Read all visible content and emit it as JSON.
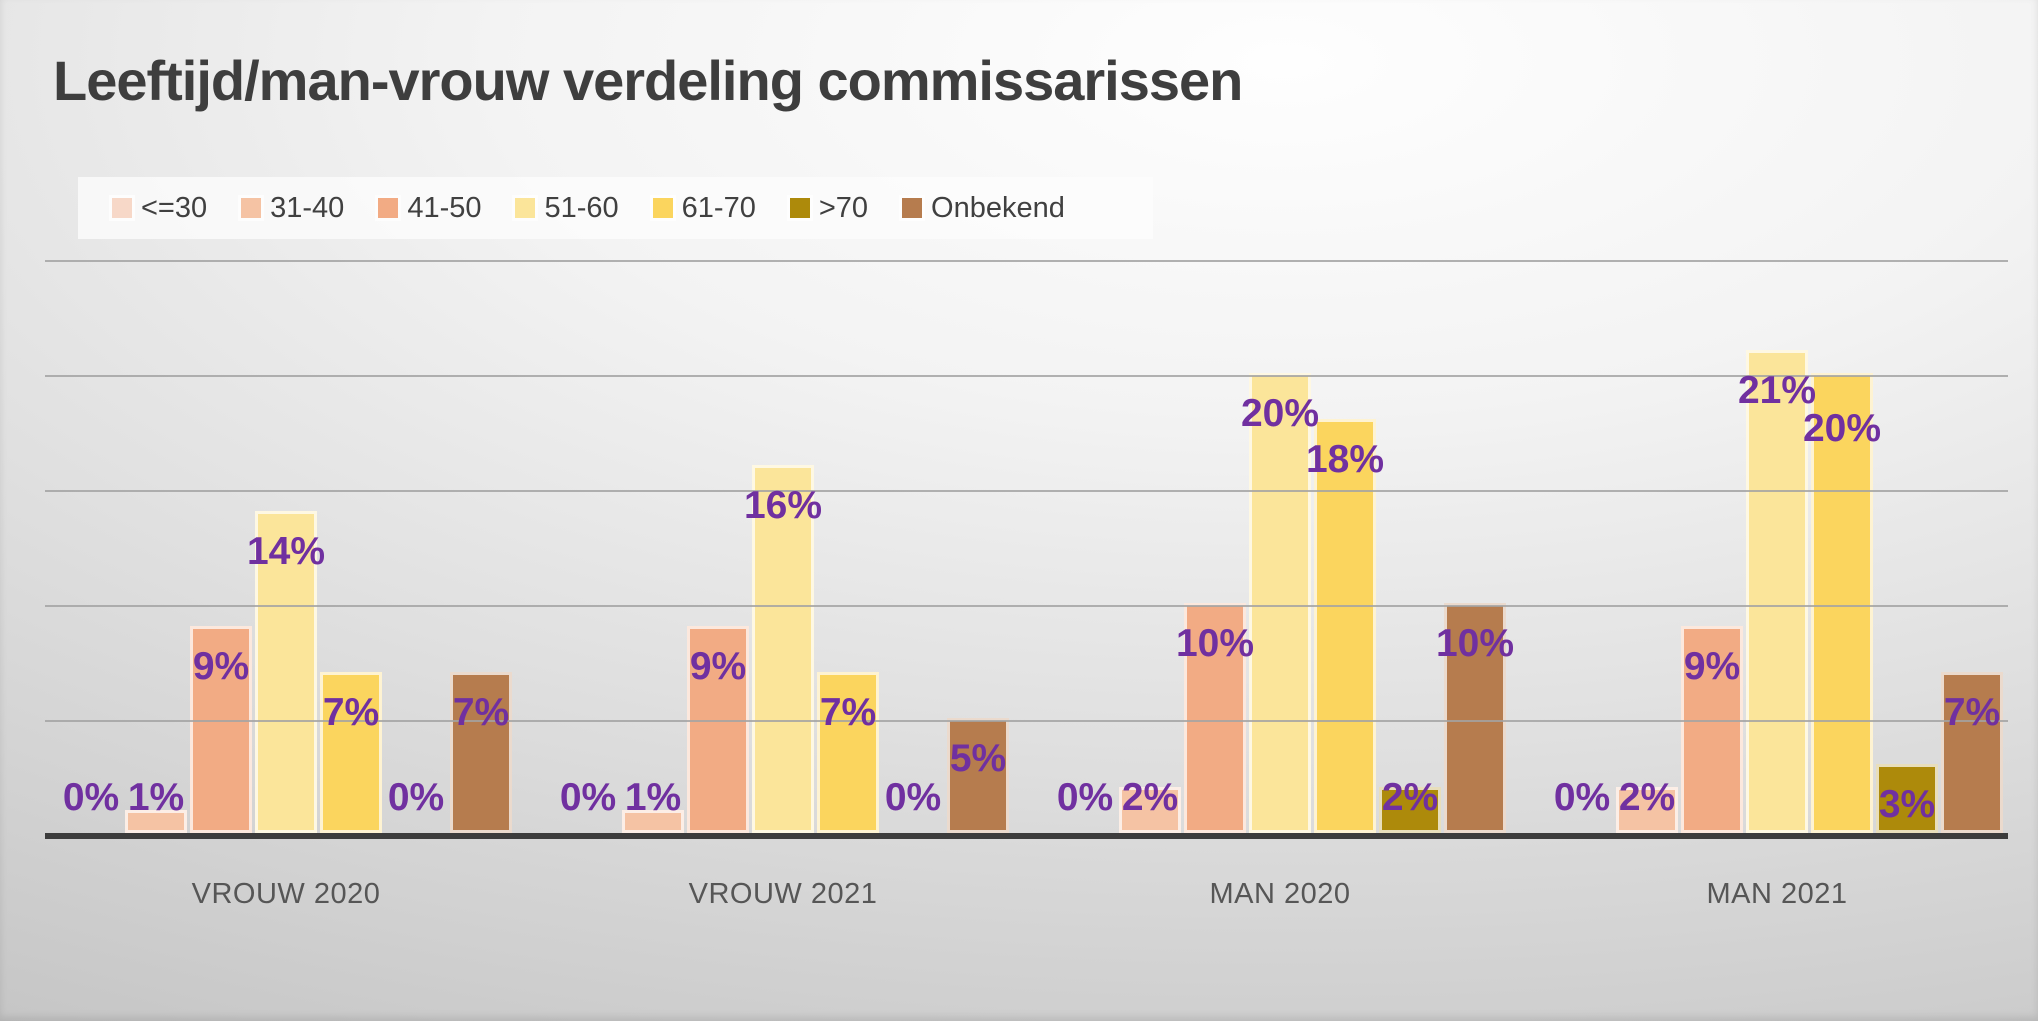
{
  "chart": {
    "title": "Leeftijd/man-vrouw verdeling commissarissen"
  },
  "chart_data": {
    "type": "bar",
    "title": "Leeftijd/man-vrouw verdeling commissarissen",
    "categories": [
      "VROUW 2020",
      "VROUW 2021",
      "MAN 2020",
      "MAN 2021"
    ],
    "series": [
      {
        "name": "<=30",
        "color": "#f7d8c8",
        "values": [
          0,
          0,
          0,
          0
        ]
      },
      {
        "name": "31-40",
        "color": "#f5c3a4",
        "values": [
          1,
          1,
          2,
          2
        ]
      },
      {
        "name": "41-50",
        "color": "#f2ab84",
        "values": [
          9,
          9,
          10,
          9
        ]
      },
      {
        "name": "51-60",
        "color": "#fbe59a",
        "values": [
          14,
          16,
          20,
          21
        ]
      },
      {
        "name": "61-70",
        "color": "#fbd55e",
        "values": [
          7,
          7,
          18,
          20
        ]
      },
      {
        "name": ">70",
        "color": "#ad8a0b",
        "values": [
          0,
          0,
          2,
          3
        ]
      },
      {
        "name": "Onbekend",
        "color": "#b67c4e",
        "values": [
          7,
          5,
          10,
          7
        ]
      }
    ],
    "value_format": "percent",
    "data_labels": [
      [
        "0%",
        "1%",
        "9%",
        "14%",
        "7%",
        "0%",
        "7%"
      ],
      [
        "0%",
        "1%",
        "9%",
        "16%",
        "7%",
        "0%",
        "5%"
      ],
      [
        "0%",
        "2%",
        "10%",
        "20%",
        "18%",
        "2%",
        "10%"
      ],
      [
        "0%",
        "2%",
        "9%",
        "21%",
        "20%",
        "3%",
        "7%"
      ]
    ],
    "ylim": [
      0,
      25
    ],
    "gridline_step": 5,
    "grid": true,
    "y_axis_labels_shown": false,
    "legend_position": "top-left",
    "colors": {
      "data_label": "#7030a0",
      "title_text": "#3e3e3e",
      "category_label": "#565656",
      "legend_text": "#404040",
      "gridline": "#a3a3a3",
      "axis_line": "#3c3c3c"
    }
  }
}
